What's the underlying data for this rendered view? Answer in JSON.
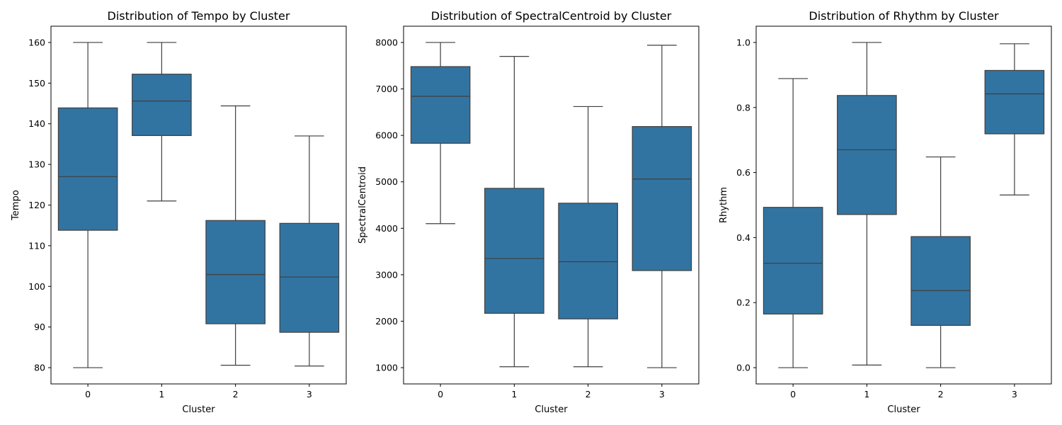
{
  "chart_data": [
    {
      "type": "box",
      "title": "Distribution of Tempo by Cluster",
      "xlabel": "Cluster",
      "ylabel": "Tempo",
      "categories": [
        "0",
        "1",
        "2",
        "3"
      ],
      "yticks": [
        80,
        90,
        100,
        110,
        120,
        130,
        140,
        150,
        160
      ],
      "ylim": [
        76,
        164
      ],
      "boxes": [
        {
          "whislo": 80,
          "q1": 113.8,
          "med": 127.0,
          "q3": 143.9,
          "whishi": 160
        },
        {
          "whislo": 121.0,
          "q1": 137.1,
          "med": 145.6,
          "q3": 152.2,
          "whishi": 160
        },
        {
          "whislo": 80.6,
          "q1": 90.8,
          "med": 102.9,
          "q3": 116.2,
          "whishi": 144.4
        },
        {
          "whislo": 80.4,
          "q1": 88.7,
          "med": 102.3,
          "q3": 115.5,
          "whishi": 137.0
        }
      ],
      "color": "#3274a1",
      "edge_color": "#3f3f3f",
      "grid": false,
      "legend": "none"
    },
    {
      "type": "box",
      "title": "Distribution of SpectralCentroid by Cluster",
      "xlabel": "Cluster",
      "ylabel": "SpectralCentroid",
      "categories": [
        "0",
        "1",
        "2",
        "3"
      ],
      "yticks": [
        1000,
        2000,
        3000,
        4000,
        5000,
        6000,
        7000,
        8000
      ],
      "ylim": [
        650,
        8350
      ],
      "boxes": [
        {
          "whislo": 4100,
          "q1": 5830,
          "med": 6840,
          "q3": 7480,
          "whishi": 8000
        },
        {
          "whislo": 1020,
          "q1": 2170,
          "med": 3350,
          "q3": 4860,
          "whishi": 7700
        },
        {
          "whislo": 1020,
          "q1": 2050,
          "med": 3280,
          "q3": 4540,
          "whishi": 6620
        },
        {
          "whislo": 1000,
          "q1": 3090,
          "med": 5060,
          "q3": 6190,
          "whishi": 7940
        }
      ],
      "color": "#3274a1",
      "edge_color": "#3f3f3f",
      "grid": false,
      "legend": "none"
    },
    {
      "type": "box",
      "title": "Distribution of Rhythm by Cluster",
      "xlabel": "Cluster",
      "ylabel": "Rhythm",
      "categories": [
        "0",
        "1",
        "2",
        "3"
      ],
      "yticks": [
        0.0,
        0.2,
        0.4,
        0.6,
        0.8,
        1.0
      ],
      "yticklabels": [
        "0.0",
        "0.2",
        "0.4",
        "0.6",
        "0.8",
        "1.0"
      ],
      "ylim": [
        -0.05,
        1.05
      ],
      "boxes": [
        {
          "whislo": 0.0,
          "q1": 0.165,
          "med": 0.321,
          "q3": 0.493,
          "whishi": 0.889
        },
        {
          "whislo": 0.008,
          "q1": 0.471,
          "med": 0.67,
          "q3": 0.837,
          "whishi": 1.0
        },
        {
          "whislo": 0.0,
          "q1": 0.13,
          "med": 0.237,
          "q3": 0.403,
          "whishi": 0.648
        },
        {
          "whislo": 0.531,
          "q1": 0.719,
          "med": 0.842,
          "q3": 0.914,
          "whishi": 0.996
        }
      ],
      "color": "#3274a1",
      "edge_color": "#3f3f3f",
      "grid": false,
      "legend": "none"
    }
  ]
}
